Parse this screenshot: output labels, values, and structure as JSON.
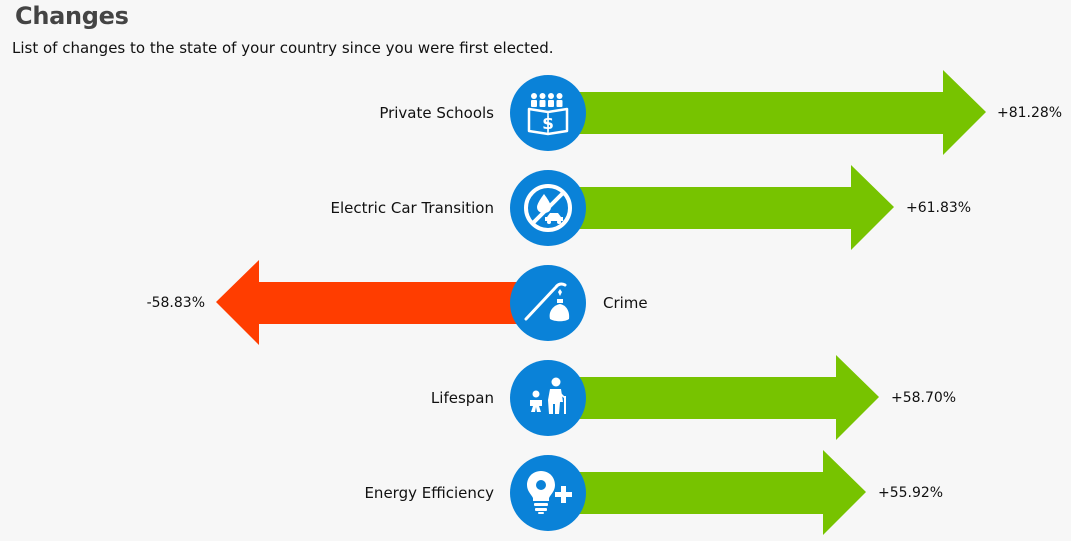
{
  "header": {
    "title": "Changes",
    "subtitle": "List of changes to the state of your country since you were first elected."
  },
  "colors": {
    "positive": "#77c300",
    "negative": "#ff3d00",
    "icon_bg": "#0a82d8"
  },
  "changes": [
    {
      "label": "Private Schools",
      "value": "+81.28%",
      "icon": "private-schools-icon"
    },
    {
      "label": "Electric Car Transition",
      "value": "+61.83%",
      "icon": "electric-car-icon"
    },
    {
      "label": "Crime",
      "value": "-58.83%",
      "icon": "crime-icon"
    },
    {
      "label": "Lifespan",
      "value": "+58.70%",
      "icon": "lifespan-icon"
    },
    {
      "label": "Energy Efficiency",
      "value": "+55.92%",
      "icon": "energy-efficiency-icon"
    }
  ]
}
